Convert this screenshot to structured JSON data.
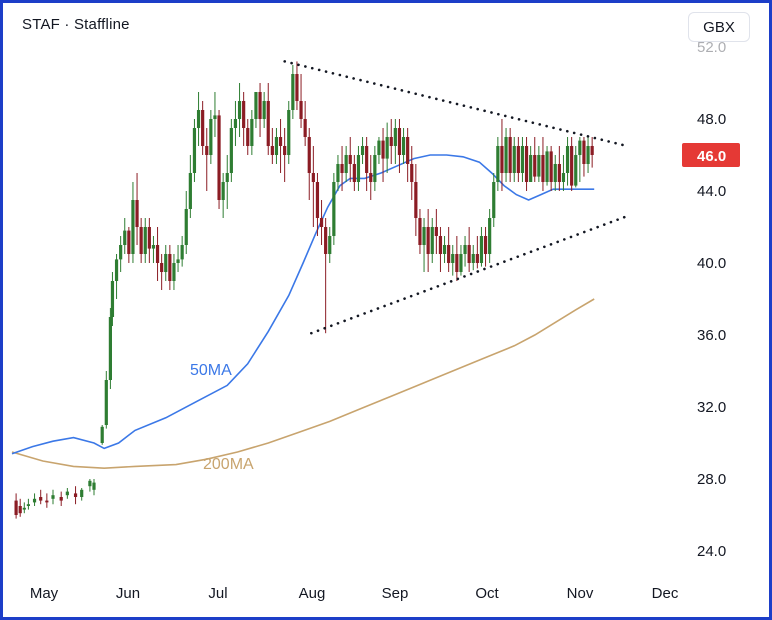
{
  "header": {
    "title": "STAF · Staffline",
    "currency": "GBX"
  },
  "chart_data": {
    "type": "candlestick",
    "ylim": [
      23,
      52
    ],
    "y_ticks": [
      24,
      28,
      32,
      36,
      40,
      44,
      48
    ],
    "y_tick_labels": [
      "24.0",
      "28.0",
      "32.0",
      "36.0",
      "40.0",
      "44.0",
      "48.0"
    ],
    "x_tick_labels": [
      "May",
      "Jun",
      "Jul",
      "Aug",
      "Sep",
      "Oct",
      "Nov",
      "Dec"
    ],
    "last_price": 46.0,
    "last_price_label": "46.0",
    "colors": {
      "up": "#2e7d32",
      "down": "#8b1c24",
      "ma50": "#3b78e7",
      "ma200": "#c8a46e",
      "last_price_bg": "#e53935"
    },
    "series": [
      {
        "name": "50MA",
        "points": [
          [
            0,
            29.4
          ],
          [
            10,
            29.8
          ],
          [
            20,
            30.1
          ],
          [
            30,
            30.3
          ],
          [
            40,
            30.0
          ],
          [
            45,
            29.7
          ],
          [
            52,
            30.0
          ],
          [
            60,
            30.7
          ],
          [
            75,
            31.4
          ],
          [
            90,
            32.3
          ],
          [
            105,
            33.2
          ],
          [
            115,
            34.4
          ],
          [
            125,
            36.2
          ],
          [
            135,
            38.2
          ],
          [
            142,
            40.0
          ],
          [
            148,
            41.6
          ],
          [
            154,
            43.1
          ],
          [
            160,
            44.3
          ],
          [
            165,
            44.7
          ],
          [
            172,
            44.7
          ],
          [
            180,
            45.0
          ],
          [
            188,
            45.4
          ],
          [
            196,
            45.8
          ],
          [
            204,
            46.0
          ],
          [
            212,
            46.0
          ],
          [
            220,
            45.9
          ],
          [
            228,
            45.6
          ],
          [
            234,
            45.0
          ],
          [
            240,
            44.3
          ],
          [
            246,
            43.8
          ],
          [
            252,
            43.5
          ],
          [
            258,
            43.8
          ],
          [
            264,
            44.1
          ],
          [
            272,
            44.1
          ],
          [
            280,
            44.1
          ],
          [
            284,
            44.1
          ]
        ]
      },
      {
        "name": "200MA",
        "points": [
          [
            0,
            29.5
          ],
          [
            15,
            29.0
          ],
          [
            30,
            28.7
          ],
          [
            45,
            28.6
          ],
          [
            60,
            28.7
          ],
          [
            80,
            28.8
          ],
          [
            95,
            29.1
          ],
          [
            110,
            29.5
          ],
          [
            125,
            30.0
          ],
          [
            140,
            30.6
          ],
          [
            155,
            31.2
          ],
          [
            170,
            31.9
          ],
          [
            185,
            32.6
          ],
          [
            200,
            33.3
          ],
          [
            215,
            34.0
          ],
          [
            230,
            34.7
          ],
          [
            245,
            35.4
          ],
          [
            255,
            36.0
          ],
          [
            265,
            36.7
          ],
          [
            275,
            37.4
          ],
          [
            284,
            38.0
          ]
        ]
      }
    ],
    "trendlines": {
      "upper": [
        [
          133,
          51.2
        ],
        [
          300,
          46.5
        ]
      ],
      "lower": [
        [
          146,
          36.1
        ],
        [
          300,
          42.6
        ]
      ]
    },
    "candles": [
      [
        2,
        26.8,
        27.2,
        26.0,
        25.8
      ],
      [
        4,
        26.5,
        26.9,
        26.1,
        25.9
      ],
      [
        6,
        26.3,
        26.7,
        26.4,
        26.1
      ],
      [
        8,
        26.5,
        26.9,
        26.6,
        26.3
      ],
      [
        11,
        26.7,
        27.2,
        26.9,
        26.5
      ],
      [
        14,
        27.0,
        27.4,
        26.8,
        26.6
      ],
      [
        17,
        26.8,
        27.2,
        26.7,
        26.4
      ],
      [
        20,
        26.9,
        27.4,
        27.1,
        26.6
      ],
      [
        24,
        27.0,
        27.3,
        26.8,
        26.5
      ],
      [
        27,
        27.1,
        27.5,
        27.3,
        26.9
      ],
      [
        31,
        27.2,
        27.6,
        27.0,
        26.6
      ],
      [
        34,
        27.0,
        27.5,
        27.4,
        26.8
      ],
      [
        38,
        27.6,
        28.0,
        27.9,
        27.3
      ],
      [
        40,
        27.4,
        28.0,
        27.8,
        27.1
      ],
      [
        44,
        30.0,
        31.0,
        30.9,
        29.9
      ],
      [
        46,
        31.0,
        34.0,
        33.5,
        30.8
      ],
      [
        48,
        33.5,
        37.5,
        37.0,
        33.0
      ],
      [
        49,
        37.0,
        39.5,
        39.0,
        36.5
      ],
      [
        51,
        39.0,
        40.5,
        40.2,
        38.0
      ],
      [
        53,
        40.2,
        41.5,
        41.0,
        39.5
      ],
      [
        55,
        41.0,
        42.5,
        41.8,
        40.5
      ],
      [
        57,
        41.8,
        42.0,
        40.5,
        40.0
      ],
      [
        59,
        40.5,
        44.5,
        43.5,
        40.0
      ],
      [
        61,
        43.5,
        45.0,
        42.0,
        41.0
      ],
      [
        63,
        42.0,
        42.5,
        40.5,
        40.0
      ],
      [
        65,
        40.5,
        42.5,
        42.0,
        40.0
      ],
      [
        67,
        42.0,
        42.5,
        40.8,
        40.0
      ],
      [
        69,
        40.8,
        41.5,
        41.0,
        40.0
      ],
      [
        71,
        41.0,
        42.0,
        40.0,
        39.0
      ],
      [
        73,
        40.0,
        40.5,
        39.5,
        38.5
      ],
      [
        75,
        39.5,
        41.0,
        40.5,
        39.0
      ],
      [
        77,
        40.5,
        41.0,
        39.0,
        38.5
      ],
      [
        79,
        39.0,
        40.5,
        40.0,
        38.5
      ],
      [
        81,
        40.0,
        41.0,
        40.2,
        39.5
      ],
      [
        83,
        40.2,
        41.5,
        41.0,
        39.8
      ],
      [
        85,
        41.0,
        44.0,
        43.0,
        40.5
      ],
      [
        87,
        43.0,
        46.0,
        45.0,
        42.5
      ],
      [
        89,
        45.0,
        48.0,
        47.5,
        44.5
      ],
      [
        91,
        47.5,
        49.5,
        48.5,
        46.5
      ],
      [
        93,
        48.5,
        49.0,
        46.5,
        46.0
      ],
      [
        95,
        46.5,
        47.5,
        46.0,
        44.0
      ],
      [
        97,
        46.0,
        48.5,
        48.0,
        45.5
      ],
      [
        99,
        48.0,
        49.5,
        48.2,
        47.0
      ],
      [
        101,
        48.2,
        48.5,
        43.5,
        43.0
      ],
      [
        103,
        43.5,
        45.0,
        44.5,
        42.5
      ],
      [
        105,
        44.5,
        46.0,
        45.0,
        43.0
      ],
      [
        107,
        45.0,
        48.0,
        47.5,
        44.5
      ],
      [
        109,
        47.5,
        49.0,
        48.0,
        46.5
      ],
      [
        111,
        48.0,
        50.0,
        49.0,
        47.0
      ],
      [
        113,
        49.0,
        49.5,
        47.5,
        46.5
      ],
      [
        115,
        47.5,
        48.0,
        46.5,
        46.0
      ],
      [
        117,
        46.5,
        48.5,
        48.0,
        46.0
      ],
      [
        119,
        48.0,
        49.5,
        49.5,
        47.5
      ],
      [
        121,
        49.5,
        50.0,
        48.0,
        47.0
      ],
      [
        123,
        48.0,
        49.5,
        49.0,
        47.5
      ],
      [
        125,
        49.0,
        50.0,
        46.5,
        46.0
      ],
      [
        127,
        46.5,
        47.5,
        46.0,
        45.5
      ],
      [
        129,
        46.0,
        47.5,
        47.0,
        45.5
      ],
      [
        131,
        47.0,
        48.0,
        46.5,
        45.0
      ],
      [
        133,
        46.5,
        47.5,
        46.0,
        44.5
      ],
      [
        135,
        46.0,
        49.0,
        48.5,
        45.5
      ],
      [
        137,
        48.5,
        51.0,
        50.5,
        48.0
      ],
      [
        139,
        50.5,
        51.2,
        49.0,
        48.5
      ],
      [
        141,
        49.0,
        50.5,
        48.0,
        47.5
      ],
      [
        143,
        48.0,
        49.0,
        47.0,
        46.5
      ],
      [
        145,
        47.0,
        47.5,
        45.0,
        43.5
      ],
      [
        147,
        45.0,
        46.5,
        44.5,
        42.0
      ],
      [
        149,
        44.5,
        45.0,
        42.5,
        41.5
      ],
      [
        151,
        42.5,
        43.5,
        42.0,
        41.0
      ],
      [
        153,
        42.0,
        42.5,
        40.5,
        36.1
      ],
      [
        155,
        40.5,
        42.0,
        41.5,
        40.0
      ],
      [
        157,
        41.5,
        45.0,
        44.5,
        41.0
      ],
      [
        159,
        44.5,
        46.0,
        45.5,
        44.0
      ],
      [
        161,
        45.5,
        46.5,
        45.0,
        44.0
      ],
      [
        163,
        45.0,
        46.5,
        46.0,
        44.5
      ],
      [
        165,
        46.0,
        47.0,
        45.5,
        44.5
      ],
      [
        167,
        45.5,
        46.0,
        44.5,
        44.0
      ],
      [
        169,
        44.5,
        46.5,
        46.0,
        44.0
      ],
      [
        171,
        46.0,
        47.0,
        46.5,
        45.5
      ],
      [
        173,
        46.5,
        47.0,
        45.0,
        44.0
      ],
      [
        175,
        45.0,
        46.0,
        44.5,
        43.5
      ],
      [
        177,
        44.5,
        46.5,
        46.0,
        44.0
      ],
      [
        179,
        46.0,
        47.0,
        46.8,
        45.5
      ],
      [
        181,
        46.8,
        47.5,
        45.8,
        44.5
      ],
      [
        183,
        45.8,
        47.8,
        47.0,
        45.0
      ],
      [
        185,
        47.0,
        48.0,
        46.5,
        45.5
      ],
      [
        187,
        46.5,
        48.0,
        47.5,
        45.5
      ],
      [
        189,
        47.5,
        48.0,
        46.0,
        45.0
      ],
      [
        191,
        46.0,
        47.5,
        47.0,
        45.5
      ],
      [
        193,
        47.0,
        47.5,
        45.5,
        44.5
      ],
      [
        195,
        45.5,
        46.5,
        44.5,
        43.5
      ],
      [
        197,
        44.5,
        45.5,
        42.5,
        41.5
      ],
      [
        199,
        42.5,
        43.0,
        41.0,
        40.5
      ],
      [
        201,
        41.0,
        42.5,
        42.0,
        39.5
      ],
      [
        203,
        42.0,
        43.0,
        40.5,
        39.5
      ],
      [
        205,
        40.5,
        42.5,
        42.0,
        40.0
      ],
      [
        207,
        42.0,
        43.0,
        41.5,
        40.5
      ],
      [
        209,
        41.5,
        42.0,
        40.5,
        39.5
      ],
      [
        211,
        40.5,
        41.5,
        41.0,
        40.0
      ],
      [
        213,
        41.0,
        42.0,
        40.0,
        39.5
      ],
      [
        215,
        40.0,
        41.0,
        40.5,
        39.3
      ],
      [
        217,
        40.5,
        41.5,
        39.5,
        39.0
      ],
      [
        219,
        39.5,
        41.0,
        40.5,
        39.3
      ],
      [
        221,
        40.5,
        41.5,
        41.0,
        39.8
      ],
      [
        223,
        41.0,
        42.0,
        40.0,
        39.5
      ],
      [
        225,
        40.0,
        41.0,
        40.5,
        39.6
      ],
      [
        227,
        40.5,
        41.5,
        40.0,
        39.7
      ],
      [
        229,
        40.0,
        42.0,
        41.5,
        39.8
      ],
      [
        231,
        41.5,
        42.0,
        40.5,
        39.8
      ],
      [
        233,
        40.5,
        43.0,
        42.5,
        40.0
      ],
      [
        235,
        42.5,
        45.0,
        44.5,
        42.0
      ],
      [
        237,
        44.5,
        47.0,
        46.5,
        44.0
      ],
      [
        239,
        46.5,
        48.0,
        45.0,
        44.0
      ],
      [
        241,
        45.0,
        47.5,
        47.0,
        44.5
      ],
      [
        243,
        47.0,
        47.5,
        45.0,
        44.5
      ],
      [
        245,
        45.0,
        47.0,
        46.5,
        44.5
      ],
      [
        247,
        46.5,
        47.0,
        45.0,
        44.5
      ],
      [
        249,
        45.0,
        47.0,
        46.5,
        44.5
      ],
      [
        251,
        46.5,
        47.0,
        44.5,
        44.0
      ],
      [
        253,
        44.5,
        46.5,
        46.0,
        44.5
      ],
      [
        255,
        46.0,
        47.0,
        44.8,
        44.5
      ],
      [
        257,
        44.8,
        46.5,
        46.0,
        44.5
      ],
      [
        259,
        46.0,
        47.0,
        44.5,
        44.0
      ],
      [
        261,
        44.5,
        46.5,
        46.2,
        44.3
      ],
      [
        263,
        46.2,
        46.5,
        44.5,
        44.0
      ],
      [
        265,
        44.5,
        46.0,
        45.5,
        44.0
      ],
      [
        267,
        45.5,
        46.5,
        44.5,
        44.0
      ],
      [
        269,
        44.5,
        46.0,
        45.0,
        44.0
      ],
      [
        271,
        45.0,
        47.0,
        46.5,
        44.3
      ],
      [
        273,
        46.5,
        47.0,
        44.3,
        44.0
      ],
      [
        275,
        44.3,
        46.5,
        46.0,
        44.2
      ],
      [
        277,
        46.0,
        47.0,
        46.8,
        44.5
      ],
      [
        279,
        46.8,
        47.0,
        45.5,
        44.8
      ],
      [
        281,
        45.5,
        47.0,
        46.5,
        45.0
      ],
      [
        283,
        46.5,
        47.0,
        46.0,
        45.3
      ]
    ]
  }
}
